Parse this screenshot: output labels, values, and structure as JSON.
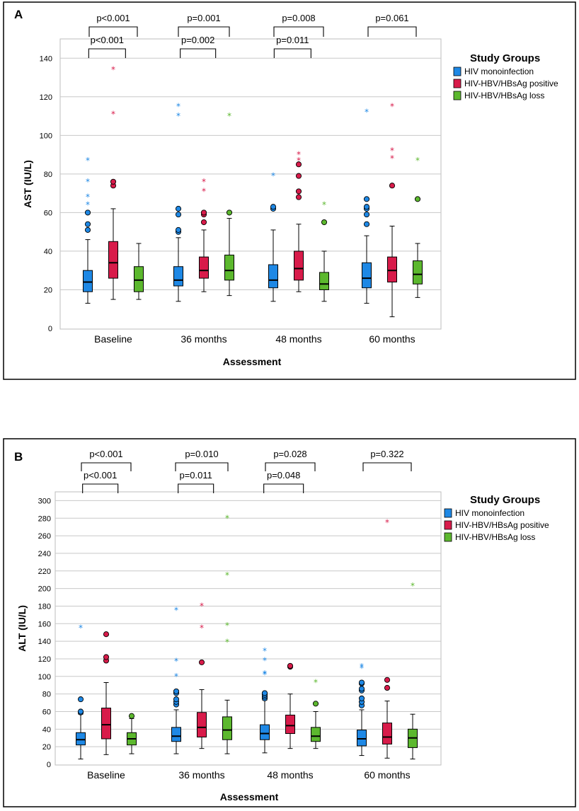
{
  "chart_data": [
    {
      "panel": "A",
      "type": "boxplot",
      "xlabel": "Assessment",
      "ylabel": "AST (IU/L)",
      "ylim": [
        0,
        150
      ],
      "yticks": [
        0,
        20,
        40,
        60,
        80,
        100,
        120,
        140
      ],
      "categories": [
        "Baseline",
        "36 months",
        "48 months",
        "60 months"
      ],
      "legend": {
        "title": "Study Groups",
        "entries": [
          {
            "name": "HIV monoinfection",
            "color": "#1e88e5"
          },
          {
            "name": "HIV-HBV/HBsAg positive",
            "color": "#d81b4a"
          },
          {
            "name": "HIV-HBV/HBsAg loss",
            "color": "#5cb82e"
          }
        ]
      },
      "comparisons": [
        {
          "category": 0,
          "outer": "p<0.001",
          "inner": "p<0.001"
        },
        {
          "category": 1,
          "outer": "p=0.001",
          "inner": "p=0.002"
        },
        {
          "category": 2,
          "outer": "p=0.008",
          "inner": "p=0.011"
        },
        {
          "category": 3,
          "outer": "p=0.061"
        }
      ],
      "series": [
        {
          "name": "HIV monoinfection",
          "boxes": [
            {
              "min": 13,
              "q1": 19,
              "median": 24,
              "q3": 30,
              "max": 46,
              "outliers": [
                51,
                54,
                60
              ],
              "extremes": [
                64,
                68,
                76,
                87
              ]
            },
            {
              "min": 14,
              "q1": 22,
              "median": 25,
              "q3": 32,
              "max": 47,
              "outliers": [
                50,
                51,
                59,
                62
              ],
              "extremes": [
                110,
                115
              ]
            },
            {
              "min": 14,
              "q1": 21,
              "median": 25,
              "q3": 33,
              "max": 51,
              "outliers": [
                62,
                63
              ],
              "extremes": [
                79
              ]
            },
            {
              "min": 13,
              "q1": 21,
              "median": 26,
              "q3": 34,
              "max": 48,
              "outliers": [
                54,
                59,
                62,
                63,
                67
              ],
              "extremes": [
                112
              ]
            }
          ]
        },
        {
          "name": "HIV-HBV/HBsAg positive",
          "boxes": [
            {
              "min": 15,
              "q1": 26,
              "median": 34,
              "q3": 45,
              "max": 62,
              "outliers": [
                74,
                76
              ],
              "extremes": [
                111,
                134
              ]
            },
            {
              "min": 19,
              "q1": 26,
              "median": 30,
              "q3": 37,
              "max": 51,
              "outliers": [
                55,
                59,
                60
              ],
              "extremes": [
                71,
                76
              ]
            },
            {
              "min": 19,
              "q1": 25,
              "median": 31,
              "q3": 40,
              "max": 54,
              "outliers": [
                68,
                71,
                79,
                85
              ],
              "extremes": [
                87,
                90
              ]
            },
            {
              "min": 6,
              "q1": 24,
              "median": 30,
              "q3": 37,
              "max": 53,
              "outliers": [
                74
              ],
              "extremes": [
                88,
                92,
                115
              ]
            }
          ]
        },
        {
          "name": "HIV-HBV/HBsAg loss",
          "boxes": [
            {
              "min": 15,
              "q1": 19,
              "median": 25,
              "q3": 32,
              "max": 44,
              "outliers": [],
              "extremes": []
            },
            {
              "min": 17,
              "q1": 25,
              "median": 30,
              "q3": 38,
              "max": 57,
              "outliers": [
                60
              ],
              "extremes": [
                110
              ]
            },
            {
              "min": 14,
              "q1": 20,
              "median": 23,
              "q3": 29,
              "max": 40,
              "outliers": [
                55
              ],
              "extremes": [
                64
              ]
            },
            {
              "min": 16,
              "q1": 23,
              "median": 28,
              "q3": 35,
              "max": 44,
              "outliers": [
                67
              ],
              "extremes": [
                87
              ]
            }
          ]
        }
      ]
    },
    {
      "panel": "B",
      "type": "boxplot",
      "xlabel": "Assessment",
      "ylabel": "ALT (IU/L)",
      "ylim": [
        0,
        310
      ],
      "yticks": [
        0,
        20,
        40,
        60,
        80,
        100,
        120,
        140,
        160,
        180,
        200,
        220,
        240,
        260,
        280,
        300
      ],
      "categories": [
        "Baseline",
        "36 months",
        "48 months",
        "60 months"
      ],
      "legend": {
        "title": "Study Groups",
        "entries": [
          {
            "name": "HIV monoinfection",
            "color": "#1e88e5"
          },
          {
            "name": "HIV-HBV/HBsAg positive",
            "color": "#d81b4a"
          },
          {
            "name": "HIV-HBV/HBsAg loss",
            "color": "#5cb82e"
          }
        ]
      },
      "comparisons": [
        {
          "category": 0,
          "outer": "p<0.001",
          "inner": "p<0.001"
        },
        {
          "category": 1,
          "outer": "p=0.010",
          "inner": "p=0.011"
        },
        {
          "category": 2,
          "outer": "p=0.028",
          "inner": "p=0.048"
        },
        {
          "category": 3,
          "outer": "p=0.322"
        }
      ],
      "series": [
        {
          "name": "HIV monoinfection",
          "boxes": [
            {
              "min": 6,
              "q1": 22,
              "median": 28,
              "q3": 36,
              "max": 57,
              "outliers": [
                59,
                60,
                74
              ],
              "extremes": [
                155
              ]
            },
            {
              "min": 12,
              "q1": 26,
              "median": 32,
              "q3": 42,
              "max": 62,
              "outliers": [
                68,
                71,
                74,
                81,
                83
              ],
              "extremes": [
                100,
                117,
                175
              ]
            },
            {
              "min": 13,
              "q1": 28,
              "median": 35,
              "q3": 45,
              "max": 73,
              "outliers": [
                75,
                77,
                79,
                81
              ],
              "extremes": [
                102,
                103,
                118,
                129
              ]
            },
            {
              "min": 10,
              "q1": 21,
              "median": 29,
              "q3": 39,
              "max": 62,
              "outliers": [
                67,
                71,
                75,
                84,
                86,
                92,
                93
              ],
              "extremes": [
                109,
                111
              ]
            }
          ]
        },
        {
          "name": "HIV-HBV/HBsAg positive",
          "boxes": [
            {
              "min": 11,
              "q1": 29,
              "median": 45,
              "q3": 64,
              "max": 93,
              "outliers": [
                118,
                122,
                148
              ],
              "extremes": []
            },
            {
              "min": 18,
              "q1": 31,
              "median": 42,
              "q3": 59,
              "max": 85,
              "outliers": [
                116
              ],
              "extremes": [
                155,
                180
              ]
            },
            {
              "min": 18,
              "q1": 35,
              "median": 44,
              "q3": 56,
              "max": 80,
              "outliers": [
                111,
                112
              ],
              "extremes": []
            },
            {
              "min": 7,
              "q1": 23,
              "median": 31,
              "q3": 47,
              "max": 72,
              "outliers": [
                87,
                96
              ],
              "extremes": [
                275
              ]
            }
          ]
        },
        {
          "name": "HIV-HBV/HBsAg loss",
          "boxes": [
            {
              "min": 12,
              "q1": 22,
              "median": 29,
              "q3": 36,
              "max": 52,
              "outliers": [
                55
              ],
              "extremes": []
            },
            {
              "min": 12,
              "q1": 28,
              "median": 39,
              "q3": 54,
              "max": 73,
              "outliers": [],
              "extremes": [
                139,
                158,
                215,
                280
              ]
            },
            {
              "min": 18,
              "q1": 26,
              "median": 32,
              "q3": 42,
              "max": 60,
              "outliers": [
                69
              ],
              "extremes": [
                93
              ]
            },
            {
              "min": 6,
              "q1": 19,
              "median": 30,
              "q3": 40,
              "max": 57,
              "outliers": [],
              "extremes": [
                203
              ]
            }
          ]
        }
      ]
    }
  ]
}
